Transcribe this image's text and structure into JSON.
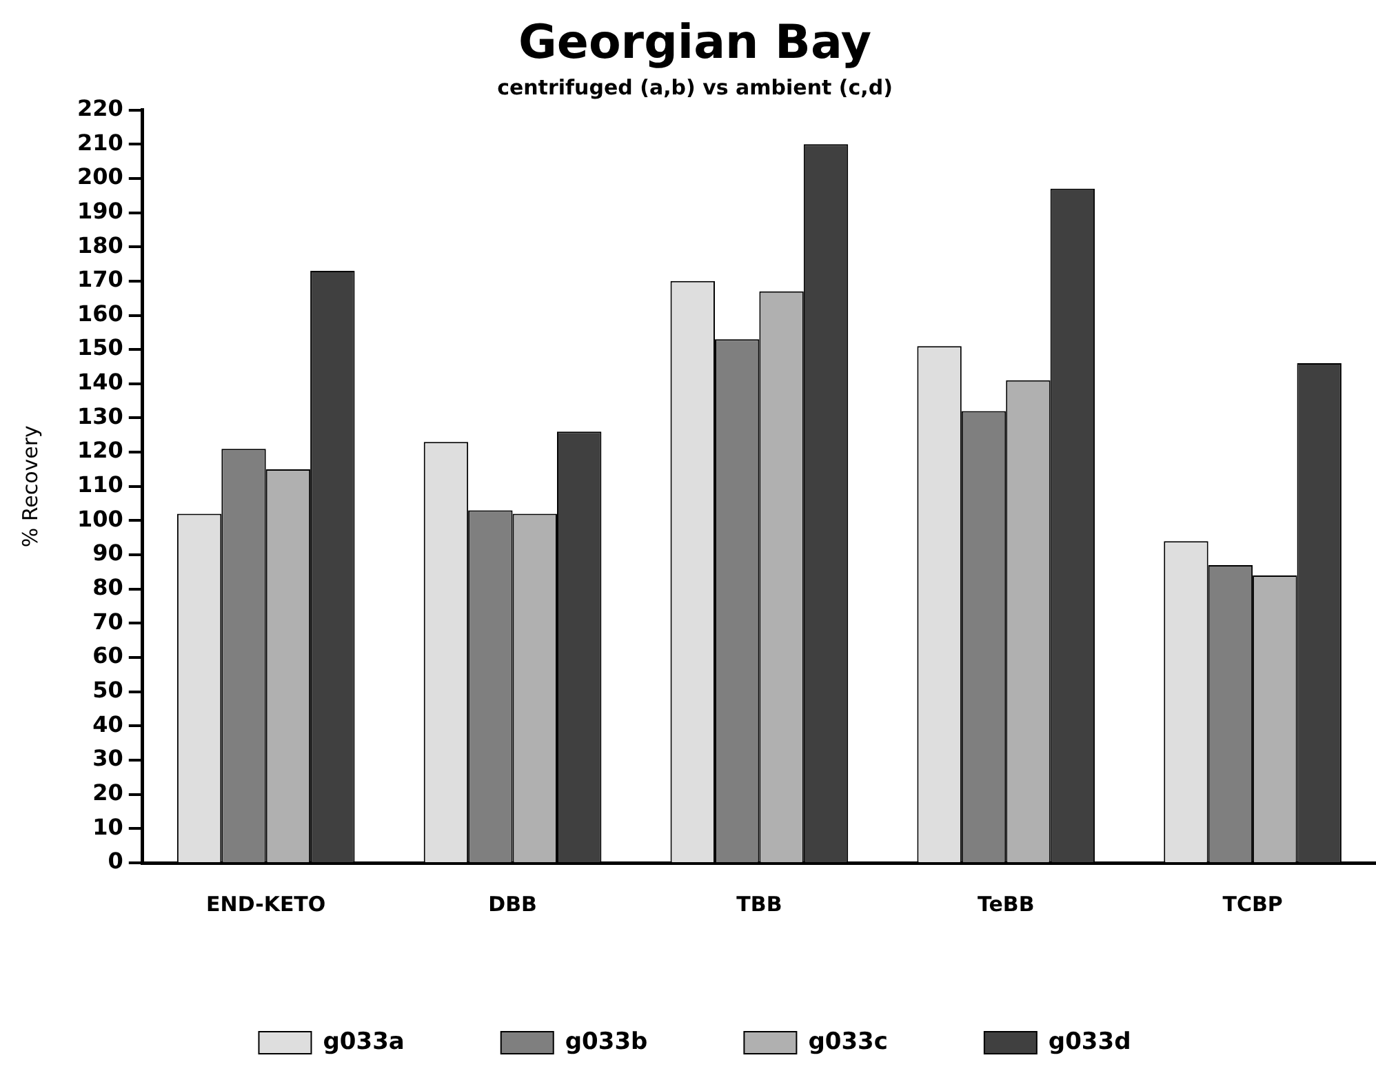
{
  "chart_data": {
    "type": "bar",
    "title": "Georgian Bay",
    "subtitle": "centrifuged (a,b) vs ambient (c,d)",
    "ylabel": "% Recovery",
    "categories": [
      "END-KETO",
      "DBB",
      "TBB",
      "TeBB",
      "TCBP"
    ],
    "series": [
      {
        "name": "g033a",
        "color": "#dedede",
        "values": [
          102,
          123,
          170,
          151,
          94
        ]
      },
      {
        "name": "g033b",
        "color": "#7f7f7f",
        "values": [
          121,
          103,
          153,
          132,
          87
        ]
      },
      {
        "name": "g033c",
        "color": "#b0b0b0",
        "values": [
          115,
          102,
          167,
          141,
          84
        ]
      },
      {
        "name": "g033d",
        "color": "#404040",
        "values": [
          173,
          126,
          210,
          197,
          146
        ]
      }
    ],
    "ylim": [
      0,
      220
    ],
    "yticks": [
      0,
      10,
      20,
      30,
      40,
      50,
      60,
      70,
      80,
      90,
      100,
      110,
      120,
      130,
      140,
      150,
      160,
      170,
      180,
      190,
      200,
      210,
      220
    ],
    "grid": false,
    "legend": "bottom"
  }
}
